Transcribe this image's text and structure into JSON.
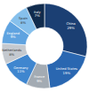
{
  "chart_data": {
    "type": "donut",
    "categories": [
      "China",
      "United States",
      "France",
      "Germany",
      "Netherlands",
      "England",
      "Spain",
      "Italy"
    ],
    "values": [
      29,
      19,
      9,
      11,
      8,
      9,
      8,
      7
    ],
    "value_labels": [
      "29%",
      "19%",
      "9%",
      "11%",
      "8%",
      "9%",
      "8%",
      "7%"
    ],
    "colors": [
      "#1b3f73",
      "#2a67b1",
      "#a3abb3",
      "#3f86cf",
      "#c4c9cf",
      "#5fa3e0",
      "#86c0ec",
      "#102b4d"
    ],
    "data_labels": true
  }
}
